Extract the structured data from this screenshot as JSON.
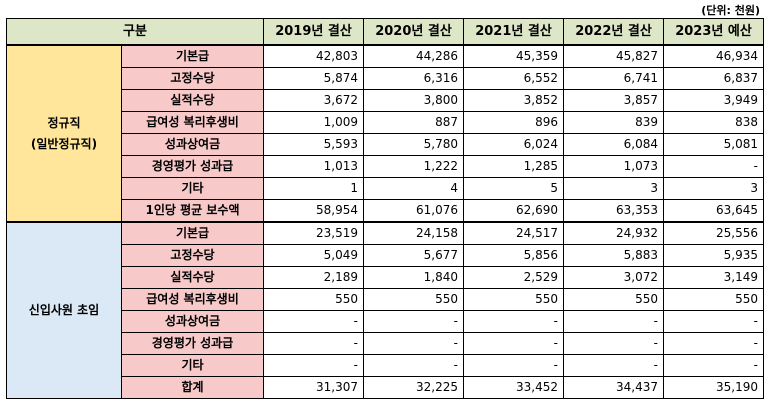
{
  "unit_note": "(단위: 천원)",
  "header": {
    "category": "구분",
    "years": [
      "2019년 결산",
      "2020년 결산",
      "2021년 결산",
      "2022년 결산",
      "2023년 예산"
    ]
  },
  "groups": [
    {
      "name_line1": "정규직",
      "name_line2": "(일반정규직)",
      "rows": [
        {
          "label": "기본급",
          "values": [
            "42,803",
            "44,286",
            "45,359",
            "45,827",
            "46,934"
          ]
        },
        {
          "label": "고정수당",
          "values": [
            "5,874",
            "6,316",
            "6,552",
            "6,741",
            "6,837"
          ]
        },
        {
          "label": "실적수당",
          "values": [
            "3,672",
            "3,800",
            "3,852",
            "3,857",
            "3,949"
          ]
        },
        {
          "label": "급여성 복리후생비",
          "values": [
            "1,009",
            "887",
            "896",
            "839",
            "838"
          ]
        },
        {
          "label": "성과상여금",
          "values": [
            "5,593",
            "5,780",
            "6,024",
            "6,084",
            "5,081"
          ]
        },
        {
          "label": "경영평가 성과급",
          "values": [
            "1,013",
            "1,222",
            "1,285",
            "1,073",
            "-"
          ]
        },
        {
          "label": "기타",
          "values": [
            "1",
            "4",
            "5",
            "3",
            "3"
          ]
        },
        {
          "label": "1인당 평균 보수액",
          "values": [
            "58,954",
            "61,076",
            "62,690",
            "63,353",
            "63,645"
          ]
        }
      ]
    },
    {
      "name_line1": "신입사원 초임",
      "name_line2": "",
      "rows": [
        {
          "label": "기본급",
          "values": [
            "23,519",
            "24,158",
            "24,517",
            "24,932",
            "25,556"
          ]
        },
        {
          "label": "고정수당",
          "values": [
            "5,049",
            "5,677",
            "5,856",
            "5,883",
            "5,935"
          ]
        },
        {
          "label": "실적수당",
          "values": [
            "2,189",
            "1,840",
            "2,529",
            "3,072",
            "3,149"
          ]
        },
        {
          "label": "급여성 복리후생비",
          "values": [
            "550",
            "550",
            "550",
            "550",
            "550"
          ]
        },
        {
          "label": "성과상여금",
          "values": [
            "-",
            "-",
            "-",
            "-",
            "-"
          ]
        },
        {
          "label": "경영평가 성과급",
          "values": [
            "-",
            "-",
            "-",
            "-",
            "-"
          ]
        },
        {
          "label": "기타",
          "values": [
            "-",
            "-",
            "-",
            "-",
            "-"
          ]
        },
        {
          "label": "합계",
          "values": [
            "31,307",
            "32,225",
            "33,452",
            "34,437",
            "35,190"
          ]
        }
      ]
    }
  ]
}
